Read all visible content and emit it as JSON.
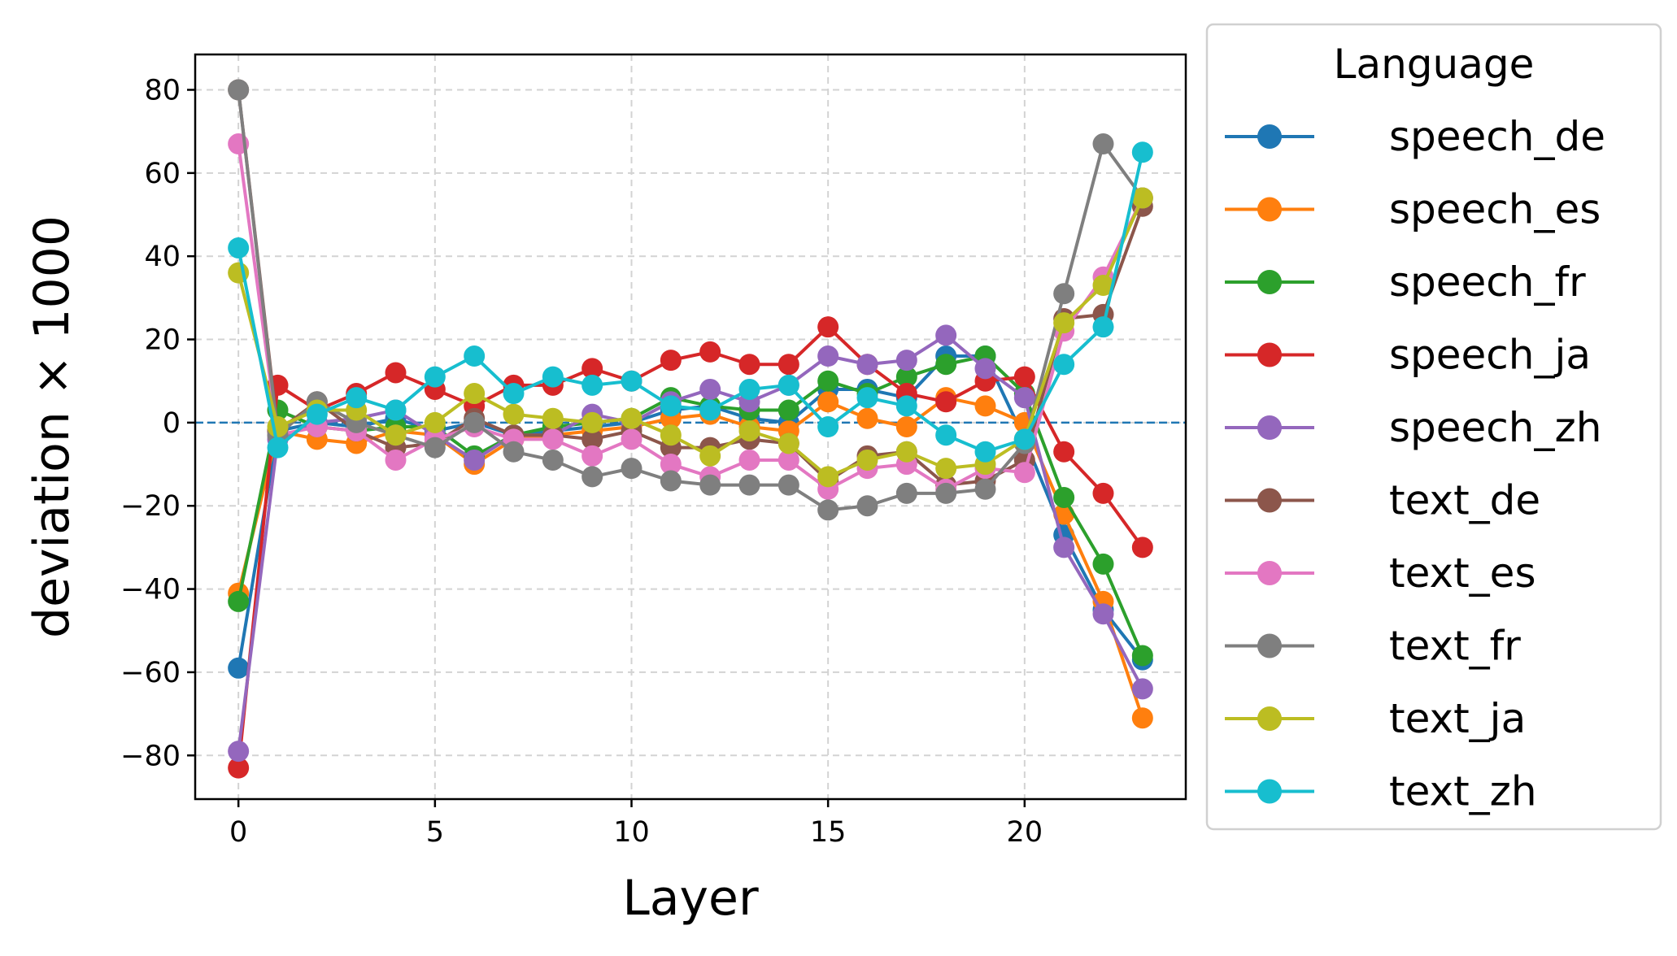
{
  "chart_data": {
    "type": "line",
    "xlabel": "Layer",
    "ylabel": "deviation × 1000",
    "xlim": [
      -1.1,
      24.1
    ],
    "ylim": [
      -90.5,
      88.5
    ],
    "xticks": [
      "0",
      "5",
      "10",
      "15",
      "20"
    ],
    "xtick_values": [
      0,
      5,
      10,
      15,
      20
    ],
    "yticks": [
      "−80",
      "−60",
      "−40",
      "−20",
      "0",
      "20",
      "40",
      "60",
      "80"
    ],
    "ytick_values": [
      -80,
      -60,
      -40,
      -20,
      0,
      20,
      40,
      60,
      80
    ],
    "grid": true,
    "reference_line_y": 0,
    "legend": {
      "title": "Language",
      "position": "outside-right"
    },
    "x": [
      0,
      1,
      2,
      3,
      4,
      5,
      6,
      7,
      8,
      9,
      10,
      11,
      12,
      13,
      14,
      15,
      16,
      17,
      18,
      19,
      20,
      21,
      22,
      23
    ],
    "series": [
      {
        "name": "speech_de",
        "color": "#1f77b4",
        "values": [
          -59,
          -2,
          0,
          -1,
          1,
          -2,
          0,
          -3,
          -2,
          -1,
          0,
          3,
          4,
          1,
          0,
          8,
          8,
          6,
          16,
          16,
          -4,
          -27,
          -45,
          -57
        ]
      },
      {
        "name": "speech_es",
        "color": "#ff7f0e",
        "values": [
          -41,
          -2,
          -4,
          -5,
          -2,
          -3,
          -10,
          -4,
          -3,
          -2,
          -1,
          1,
          2,
          -1,
          -2,
          5,
          1,
          -1,
          6,
          4,
          0,
          -22,
          -43,
          -71
        ]
      },
      {
        "name": "speech_fr",
        "color": "#2ca02c",
        "values": [
          -43,
          3,
          -1,
          -2,
          -1,
          -1,
          -8,
          -3,
          -1,
          0,
          1,
          6,
          4,
          3,
          3,
          10,
          7,
          11,
          14,
          16,
          7,
          -18,
          -34,
          -56
        ]
      },
      {
        "name": "speech_ja",
        "color": "#d62728",
        "values": [
          -83,
          9,
          3,
          7,
          12,
          8,
          4,
          9,
          9,
          13,
          10,
          15,
          17,
          14,
          14,
          23,
          14,
          7,
          5,
          10,
          11,
          -7,
          -17,
          -30
        ]
      },
      {
        "name": "speech_zh",
        "color": "#9467bd",
        "values": [
          -79,
          -4,
          0,
          1,
          3,
          -3,
          -9,
          -3,
          -3,
          2,
          0,
          5,
          8,
          5,
          9,
          16,
          14,
          15,
          21,
          13,
          6,
          -30,
          -46,
          -64
        ]
      },
      {
        "name": "text_de",
        "color": "#8c564b",
        "values": [
          80,
          -2,
          5,
          -2,
          -6,
          -5,
          1,
          -3,
          -3,
          -4,
          -2,
          -6,
          -6,
          -4,
          -5,
          -14,
          -8,
          -7,
          -15,
          -14,
          -9,
          25,
          26,
          52
        ]
      },
      {
        "name": "text_es",
        "color": "#e377c2",
        "values": [
          67,
          -3,
          -1,
          -2,
          -9,
          -4,
          -1,
          -4,
          -4,
          -8,
          -4,
          -10,
          -13,
          -9,
          -9,
          -16,
          -11,
          -10,
          -16,
          -11,
          -12,
          22,
          35,
          54
        ]
      },
      {
        "name": "text_fr",
        "color": "#7f7f7f",
        "values": [
          80,
          -3,
          5,
          0,
          -3,
          -6,
          0,
          -7,
          -9,
          -13,
          -11,
          -14,
          -15,
          -15,
          -15,
          -21,
          -20,
          -17,
          -17,
          -16,
          -5,
          31,
          67,
          54
        ]
      },
      {
        "name": "text_ja",
        "color": "#bcbd22",
        "values": [
          36,
          -1,
          3,
          3,
          -3,
          0,
          7,
          2,
          1,
          0,
          1,
          -3,
          -8,
          -2,
          -5,
          -13,
          -9,
          -7,
          -11,
          -10,
          -4,
          24,
          33,
          54
        ]
      },
      {
        "name": "text_zh",
        "color": "#17becf",
        "values": [
          42,
          -6,
          2,
          6,
          3,
          11,
          16,
          7,
          11,
          9,
          10,
          4,
          3,
          8,
          9,
          -1,
          6,
          4,
          -3,
          -7,
          -4,
          14,
          23,
          65
        ]
      }
    ]
  }
}
